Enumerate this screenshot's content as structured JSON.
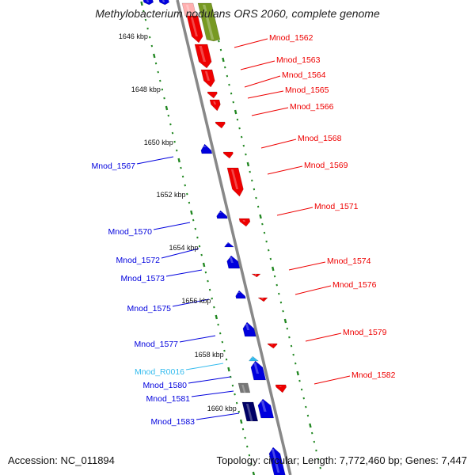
{
  "title": "Methylobacterium nodulans ORS 2060, complete genome",
  "accession": "Accession: NC_011894",
  "summary": "Topology: circular; Length: 7,772,460 bp; Genes: 7,447",
  "colors": {
    "forward_gene": "#ee0000",
    "reverse_gene": "#0000dd",
    "rna_gene": "#33bbee",
    "pseudo_gene": "#777777",
    "dark_gene": "#000066",
    "pink_gene": "#ffb0b0",
    "olive_gene": "#779922",
    "tick_green": "#228822",
    "backbone": "#888888"
  },
  "scale_labels": [
    "1646 kbp",
    "1648 kbp",
    "1650 kbp",
    "1652 kbp",
    "1654 kbp",
    "1656 kbp",
    "1658 kbp",
    "1660 kbp"
  ],
  "forward_labels": [
    "Mnod_1562",
    "Mnod_1563",
    "Mnod_1564",
    "Mnod_1565",
    "Mnod_1566",
    "Mnod_1568",
    "Mnod_1569",
    "Mnod_1571",
    "Mnod_1574",
    "Mnod_1576",
    "Mnod_1579",
    "Mnod_1582"
  ],
  "reverse_labels": [
    "Mnod_1567",
    "Mnod_1570",
    "Mnod_1572",
    "Mnod_1573",
    "Mnod_1575",
    "Mnod_1577",
    "Mnod_R0016",
    "Mnod_1580",
    "Mnod_1581",
    "Mnod_1583"
  ]
}
